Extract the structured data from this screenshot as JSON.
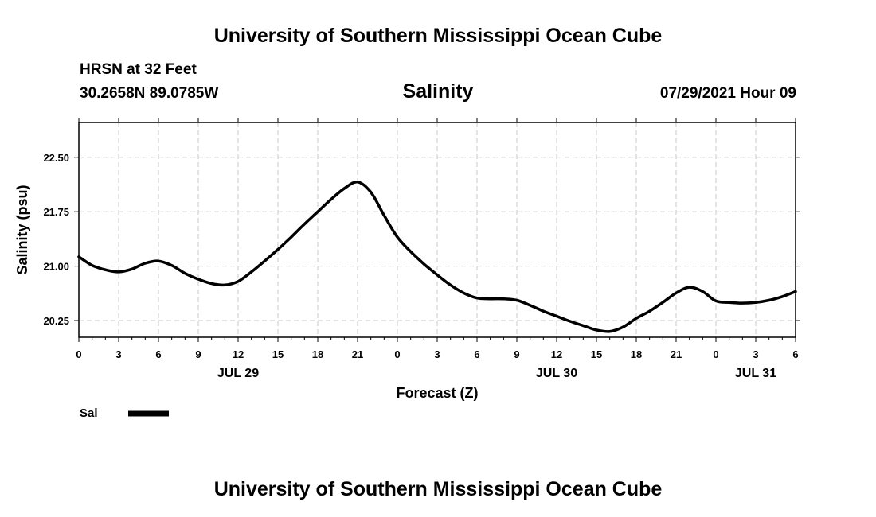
{
  "header": {
    "title_top": "University of Southern Mississippi Ocean Cube",
    "station": "HRSN at 32 Feet",
    "coords": "30.2658N  89.0785W",
    "parameter": "Salinity",
    "datetime": "07/29/2021 Hour 09",
    "title_bottom": "University of Southern Mississippi Ocean Cube"
  },
  "legend": {
    "label": "Sal",
    "color": "#000000"
  },
  "chart_data": {
    "type": "line",
    "title": "Salinity",
    "xlabel": "Forecast (Z)",
    "ylabel": "Salinity (psu)",
    "xlim": [
      0,
      54
    ],
    "ylim": [
      20.02,
      22.98
    ],
    "yticks": [
      "22.50",
      "21.75",
      "21.00",
      "20.25"
    ],
    "ytick_values": [
      22.5,
      21.75,
      21.0,
      20.25
    ],
    "xtick_hours": [
      0,
      3,
      6,
      9,
      12,
      15,
      18,
      21,
      24,
      27,
      30,
      33,
      36,
      39,
      42,
      45,
      48,
      51,
      54
    ],
    "xtick_labels": [
      "0",
      "3",
      "6",
      "9",
      "12",
      "15",
      "18",
      "21",
      "0",
      "3",
      "6",
      "9",
      "12",
      "15",
      "18",
      "21",
      "0",
      "3",
      "6"
    ],
    "date_labels": [
      {
        "label": "JUL 29",
        "hour": 12
      },
      {
        "label": "JUL 30",
        "hour": 36
      },
      {
        "label": "JUL 31",
        "hour": 51
      }
    ],
    "grid": true,
    "legend": "bottom-left",
    "series": [
      {
        "name": "Sal",
        "color": "#000000",
        "x": [
          0,
          1,
          2,
          3,
          4,
          5,
          6,
          7,
          8,
          9,
          10,
          11,
          12,
          13,
          14,
          15,
          16,
          17,
          18,
          19,
          20,
          21,
          22,
          23,
          24,
          25,
          26,
          27,
          28,
          29,
          30,
          31,
          32,
          33,
          34,
          35,
          36,
          37,
          38,
          39,
          40,
          41,
          42,
          43,
          44,
          45,
          46,
          47,
          48,
          49,
          50,
          51,
          52,
          53,
          54
        ],
        "values": [
          21.13,
          21.01,
          20.95,
          20.92,
          20.96,
          21.04,
          21.07,
          21.01,
          20.9,
          20.82,
          20.76,
          20.74,
          20.79,
          20.92,
          21.07,
          21.23,
          21.4,
          21.58,
          21.75,
          21.92,
          22.07,
          22.16,
          22.02,
          21.7,
          21.4,
          21.2,
          21.03,
          20.88,
          20.74,
          20.63,
          20.56,
          20.55,
          20.55,
          20.53,
          20.46,
          20.38,
          20.31,
          20.24,
          20.18,
          20.12,
          20.1,
          20.16,
          20.28,
          20.38,
          20.5,
          20.63,
          20.71,
          20.65,
          20.52,
          20.5,
          20.49,
          20.5,
          20.53,
          20.58,
          20.65
        ]
      }
    ]
  }
}
